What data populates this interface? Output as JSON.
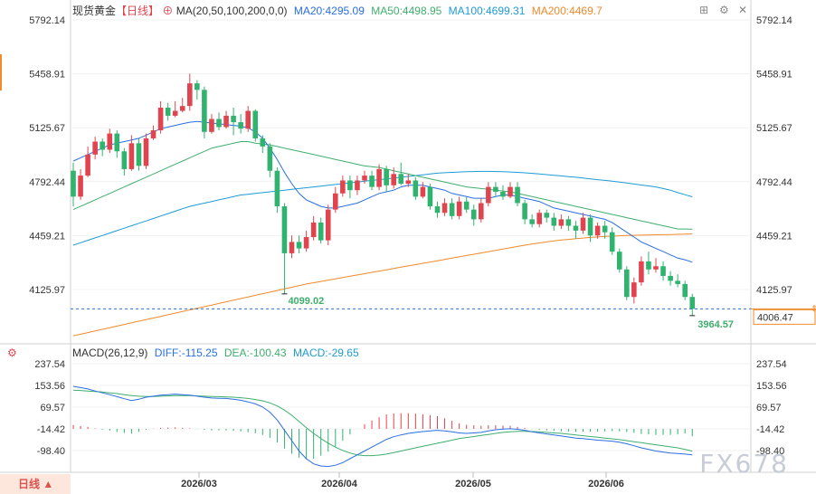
{
  "header": {
    "title": "现货黄金",
    "period": "【日线】",
    "ma_label": "MA(20,50,100,200,0,0)",
    "ma20": "MA20:4295.09",
    "ma50": "MA50:4498.95",
    "ma100": "MA100:4699.31",
    "ma200": "MA200:4469.7"
  },
  "macd_header": {
    "label": "MACD(26,12,9)",
    "diff": "DIFF:-115.25",
    "dea": "DEA:-100.43",
    "macd": "MACD:-29.65"
  },
  "period_button": "日线 ▲",
  "watermark": "FX678",
  "colors": {
    "up": "#e0454f",
    "down": "#2fb36f",
    "ma20": "#2a6ee0",
    "ma50": "#3fae6d",
    "ma100": "#1d9bd6",
    "ma200": "#f08a2c",
    "macd_diff": "#2a6ee0",
    "macd_dea": "#3fae6d"
  },
  "chart_data": [
    {
      "type": "candlestick",
      "y_ticks": [
        "5792.14",
        "5458.91",
        "5125.67",
        "4792.44",
        "4459.21",
        "4125.97"
      ],
      "ylim": [
        4000,
        5900
      ],
      "x_labels": [
        "2026/03",
        "2026/04",
        "2026/05",
        "2026/06"
      ],
      "annotations": [
        {
          "text": "4099.02",
          "index": 29,
          "value": 4099.02
        },
        {
          "text": "3964.57",
          "index": 85,
          "value": 3964.57
        }
      ],
      "current_price_label": "4006.47",
      "current_price": 4006.47,
      "candles": [
        [
          4860,
          4700,
          4910,
          4640
        ],
        [
          4700,
          4830,
          4870,
          4680
        ],
        [
          4830,
          4960,
          5010,
          4820
        ],
        [
          4960,
          5040,
          5070,
          4930
        ],
        [
          5040,
          4990,
          5060,
          4950
        ],
        [
          4990,
          5090,
          5120,
          4970
        ],
        [
          5090,
          4980,
          5110,
          4940
        ],
        [
          4980,
          4870,
          5000,
          4830
        ],
        [
          4870,
          5030,
          5080,
          4860
        ],
        [
          5030,
          4890,
          5060,
          4860
        ],
        [
          4890,
          5060,
          5090,
          4870
        ],
        [
          5060,
          5110,
          5140,
          5050
        ],
        [
          5110,
          5250,
          5290,
          5090
        ],
        [
          5250,
          5200,
          5280,
          5170
        ],
        [
          5200,
          5230,
          5290,
          5190
        ],
        [
          5230,
          5260,
          5310,
          5220
        ],
        [
          5260,
          5400,
          5460,
          5230
        ],
        [
          5400,
          5360,
          5420,
          5300
        ],
        [
          5360,
          5100,
          5380,
          5060
        ],
        [
          5100,
          5180,
          5210,
          5090
        ],
        [
          5180,
          5130,
          5220,
          5110
        ],
        [
          5130,
          5200,
          5230,
          5120
        ],
        [
          5200,
          5160,
          5250,
          5080
        ],
        [
          5160,
          5120,
          5210,
          5090
        ],
        [
          5120,
          5230,
          5260,
          5100
        ],
        [
          5230,
          5060,
          5240,
          5040
        ],
        [
          5060,
          5010,
          5080,
          4970
        ],
        [
          5010,
          4860,
          5030,
          4820
        ],
        [
          4860,
          4640,
          4880,
          4600
        ],
        [
          4640,
          4350,
          4660,
          4099.02
        ],
        [
          4350,
          4420,
          4460,
          4320
        ],
        [
          4420,
          4380,
          4460,
          4350
        ],
        [
          4380,
          4450,
          4490,
          4360
        ],
        [
          4450,
          4540,
          4580,
          4430
        ],
        [
          4540,
          4430,
          4570,
          4410
        ],
        [
          4430,
          4620,
          4650,
          4400
        ],
        [
          4620,
          4720,
          4760,
          4600
        ],
        [
          4720,
          4800,
          4830,
          4700
        ],
        [
          4800,
          4740,
          4830,
          4690
        ],
        [
          4740,
          4800,
          4830,
          4710
        ],
        [
          4800,
          4830,
          4860,
          4780
        ],
        [
          4830,
          4760,
          4860,
          4740
        ],
        [
          4760,
          4870,
          4900,
          4740
        ],
        [
          4870,
          4770,
          4890,
          4730
        ],
        [
          4770,
          4840,
          4880,
          4750
        ],
        [
          4840,
          4780,
          4910,
          4770
        ],
        [
          4780,
          4800,
          4840,
          4760
        ],
        [
          4800,
          4700,
          4820,
          4680
        ],
        [
          4700,
          4760,
          4790,
          4690
        ],
        [
          4760,
          4640,
          4780,
          4620
        ],
        [
          4640,
          4600,
          4670,
          4570
        ],
        [
          4600,
          4660,
          4690,
          4580
        ],
        [
          4660,
          4580,
          4690,
          4560
        ],
        [
          4580,
          4670,
          4700,
          4560
        ],
        [
          4670,
          4620,
          4700,
          4600
        ],
        [
          4620,
          4560,
          4650,
          4520
        ],
        [
          4560,
          4660,
          4690,
          4540
        ],
        [
          4660,
          4760,
          4790,
          4640
        ],
        [
          4760,
          4730,
          4790,
          4700
        ],
        [
          4730,
          4700,
          4770,
          4680
        ],
        [
          4700,
          4760,
          4790,
          4690
        ],
        [
          4760,
          4660,
          4790,
          4640
        ],
        [
          4660,
          4560,
          4680,
          4530
        ],
        [
          4560,
          4530,
          4590,
          4510
        ],
        [
          4530,
          4600,
          4620,
          4510
        ],
        [
          4600,
          4570,
          4620,
          4540
        ],
        [
          4570,
          4520,
          4600,
          4490
        ],
        [
          4520,
          4560,
          4590,
          4500
        ],
        [
          4560,
          4520,
          4580,
          4490
        ],
        [
          4520,
          4490,
          4550,
          4440
        ],
        [
          4490,
          4570,
          4600,
          4470
        ],
        [
          4570,
          4460,
          4590,
          4420
        ],
        [
          4460,
          4520,
          4540,
          4440
        ],
        [
          4520,
          4480,
          4550,
          4440
        ],
        [
          4480,
          4360,
          4510,
          4340
        ],
        [
          4360,
          4250,
          4380,
          4230
        ],
        [
          4250,
          4080,
          4270,
          4060
        ],
        [
          4080,
          4170,
          4200,
          4040
        ],
        [
          4170,
          4300,
          4330,
          4150
        ],
        [
          4300,
          4250,
          4360,
          4220
        ],
        [
          4250,
          4270,
          4320,
          4230
        ],
        [
          4270,
          4210,
          4300,
          4180
        ],
        [
          4210,
          4180,
          4240,
          4150
        ],
        [
          4180,
          4160,
          4220,
          4140
        ],
        [
          4160,
          4080,
          4180,
          4060
        ],
        [
          4080,
          4006.47,
          4100,
          3964.57
        ]
      ],
      "ma20": [
        4920,
        4940,
        4960,
        4980,
        5000,
        5020,
        5030,
        5040,
        5050,
        5060,
        5080,
        5100,
        5120,
        5130,
        5140,
        5150,
        5160,
        5165,
        5160,
        5155,
        5150,
        5145,
        5140,
        5135,
        5125,
        5100,
        5060,
        5000,
        4930,
        4850,
        4780,
        4720,
        4680,
        4660,
        4640,
        4630,
        4630,
        4640,
        4650,
        4660,
        4680,
        4700,
        4720,
        4730,
        4740,
        4760,
        4770,
        4770,
        4770,
        4760,
        4750,
        4740,
        4720,
        4710,
        4700,
        4690,
        4690,
        4690,
        4700,
        4710,
        4710,
        4700,
        4690,
        4680,
        4670,
        4650,
        4630,
        4620,
        4610,
        4600,
        4590,
        4580,
        4570,
        4560,
        4540,
        4510,
        4480,
        4450,
        4420,
        4400,
        4380,
        4360,
        4340,
        4320,
        4310,
        4295.09
      ],
      "ma50": [
        4620,
        4640,
        4660,
        4680,
        4700,
        4720,
        4740,
        4760,
        4780,
        4800,
        4820,
        4840,
        4860,
        4880,
        4900,
        4920,
        4940,
        4960,
        4980,
        5000,
        5010,
        5020,
        5030,
        5040,
        5040,
        5030,
        5025,
        5020,
        5010,
        5000,
        4990,
        4980,
        4970,
        4960,
        4950,
        4940,
        4930,
        4920,
        4910,
        4900,
        4890,
        4885,
        4880,
        4870,
        4860,
        4850,
        4840,
        4830,
        4820,
        4810,
        4800,
        4790,
        4780,
        4770,
        4760,
        4755,
        4750,
        4745,
        4740,
        4735,
        4730,
        4720,
        4710,
        4700,
        4690,
        4680,
        4670,
        4660,
        4650,
        4640,
        4630,
        4620,
        4610,
        4600,
        4590,
        4580,
        4570,
        4560,
        4550,
        4540,
        4530,
        4520,
        4510,
        4500,
        4500,
        4498.95
      ],
      "ma100": [
        4400,
        4415,
        4430,
        4445,
        4460,
        4475,
        4490,
        4505,
        4520,
        4535,
        4550,
        4565,
        4580,
        4595,
        4610,
        4625,
        4640,
        4650,
        4660,
        4670,
        4680,
        4690,
        4700,
        4710,
        4715,
        4720,
        4725,
        4730,
        4735,
        4740,
        4745,
        4750,
        4755,
        4760,
        4765,
        4770,
        4775,
        4780,
        4785,
        4790,
        4795,
        4800,
        4805,
        4810,
        4815,
        4820,
        4825,
        4830,
        4835,
        4840,
        4845,
        4848,
        4850,
        4852,
        4854,
        4855,
        4856,
        4856,
        4855,
        4854,
        4852,
        4850,
        4847,
        4844,
        4840,
        4836,
        4832,
        4828,
        4824,
        4820,
        4815,
        4810,
        4805,
        4800,
        4795,
        4790,
        4784,
        4778,
        4772,
        4766,
        4760,
        4750,
        4740,
        4725,
        4712,
        4699.31
      ],
      "ma200": [
        3840,
        3850,
        3860,
        3870,
        3880,
        3890,
        3900,
        3910,
        3920,
        3930,
        3940,
        3950,
        3960,
        3970,
        3980,
        3990,
        4000,
        4010,
        4020,
        4030,
        4040,
        4050,
        4060,
        4070,
        4080,
        4090,
        4100,
        4110,
        4120,
        4130,
        4140,
        4150,
        4160,
        4168,
        4176,
        4184,
        4192,
        4200,
        4208,
        4216,
        4224,
        4232,
        4240,
        4248,
        4256,
        4264,
        4272,
        4280,
        4288,
        4296,
        4304,
        4312,
        4320,
        4328,
        4336,
        4344,
        4352,
        4360,
        4368,
        4376,
        4384,
        4392,
        4400,
        4408,
        4414,
        4420,
        4426,
        4432,
        4436,
        4440,
        4444,
        4448,
        4451,
        4454,
        4456,
        4458,
        4460,
        4461,
        4462,
        4463,
        4464,
        4465,
        4466,
        4467,
        4468,
        4469.7
      ]
    },
    {
      "type": "macd",
      "y_ticks": [
        "237.54",
        "153.56",
        "69.57",
        "-14.42",
        "-98.40"
      ],
      "ylim": [
        -180,
        290
      ],
      "diff": [
        150,
        145,
        140,
        132,
        125,
        118,
        110,
        102,
        95,
        100,
        108,
        112,
        116,
        118,
        120,
        118,
        116,
        112,
        108,
        105,
        104,
        103,
        100,
        96,
        90,
        82,
        70,
        50,
        20,
        -20,
        -60,
        -100,
        -130,
        -150,
        -158,
        -160,
        -155,
        -145,
        -130,
        -115,
        -100,
        -85,
        -70,
        -55,
        -45,
        -38,
        -32,
        -28,
        -25,
        -22,
        -20,
        -22,
        -26,
        -30,
        -32,
        -30,
        -28,
        -22,
        -18,
        -15,
        -14,
        -16,
        -20,
        -26,
        -30,
        -34,
        -38,
        -42,
        -46,
        -50,
        -52,
        -55,
        -58,
        -60,
        -62,
        -66,
        -72,
        -80,
        -88,
        -94,
        -100,
        -104,
        -108,
        -110,
        -112,
        -115.25
      ],
      "dea": [
        135,
        134,
        132,
        130,
        128,
        125,
        122,
        118,
        114,
        112,
        111,
        111,
        112,
        113,
        114,
        114,
        114,
        113,
        112,
        111,
        110,
        109,
        108,
        106,
        103,
        99,
        94,
        86,
        74,
        58,
        38,
        14,
        -10,
        -32,
        -52,
        -70,
        -85,
        -98,
        -108,
        -115,
        -118,
        -118,
        -116,
        -112,
        -106,
        -100,
        -94,
        -88,
        -82,
        -76,
        -70,
        -64,
        -58,
        -52,
        -48,
        -44,
        -40,
        -36,
        -32,
        -28,
        -26,
        -24,
        -24,
        -25,
        -26,
        -28,
        -30,
        -32,
        -35,
        -38,
        -41,
        -44,
        -47,
        -50,
        -53,
        -56,
        -60,
        -64,
        -68,
        -72,
        -76,
        -80,
        -84,
        -88,
        -94,
        -100.43
      ],
      "macd": [
        15,
        11,
        8,
        2,
        -3,
        -7,
        -12,
        -16,
        -19,
        -12,
        -3,
        1,
        4,
        5,
        6,
        4,
        2,
        -1,
        -4,
        -6,
        -6,
        -6,
        -8,
        -10,
        -13,
        -17,
        -24,
        -36,
        -54,
        -78,
        -98,
        -114,
        -120,
        -118,
        -106,
        -90,
        -70,
        -47,
        -22,
        0,
        18,
        33,
        46,
        57,
        61,
        62,
        62,
        60,
        57,
        54,
        50,
        42,
        32,
        22,
        16,
        14,
        12,
        14,
        14,
        13,
        12,
        8,
        4,
        -1,
        -4,
        -6,
        -8,
        -10,
        -11,
        -12,
        -11,
        -11,
        -11,
        -10,
        -9,
        -10,
        -12,
        -16,
        -20,
        -22,
        -24,
        -24,
        -24,
        -22,
        -18,
        -29.65
      ]
    }
  ]
}
